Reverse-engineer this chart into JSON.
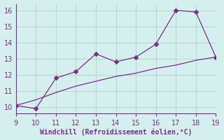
{
  "x": [
    9,
    10,
    11,
    12,
    13,
    14,
    15,
    16,
    17,
    18,
    19
  ],
  "y_line": [
    10.1,
    9.9,
    11.8,
    12.2,
    13.3,
    12.8,
    13.1,
    13.9,
    16.0,
    15.9,
    13.1
  ],
  "y_trend": [
    10.1,
    10.45,
    10.9,
    11.3,
    11.6,
    11.9,
    12.1,
    12.4,
    12.6,
    12.9,
    13.1
  ],
  "line_color": "#7b2f8a",
  "marker": "D",
  "marker_size": 3,
  "xlim": [
    9,
    19
  ],
  "ylim": [
    9.6,
    16.4
  ],
  "xticks": [
    9,
    10,
    11,
    12,
    13,
    14,
    15,
    16,
    17,
    18,
    19
  ],
  "yticks": [
    10,
    11,
    12,
    13,
    14,
    15,
    16
  ],
  "xlabel": "Windchill (Refroidissement éolien,°C)",
  "background_color": "#d4efed",
  "grid_color": "#b0d4d0",
  "tick_color": "#7b2f8a",
  "label_color": "#7b2f8a",
  "label_fontsize": 7,
  "tick_fontsize": 7
}
